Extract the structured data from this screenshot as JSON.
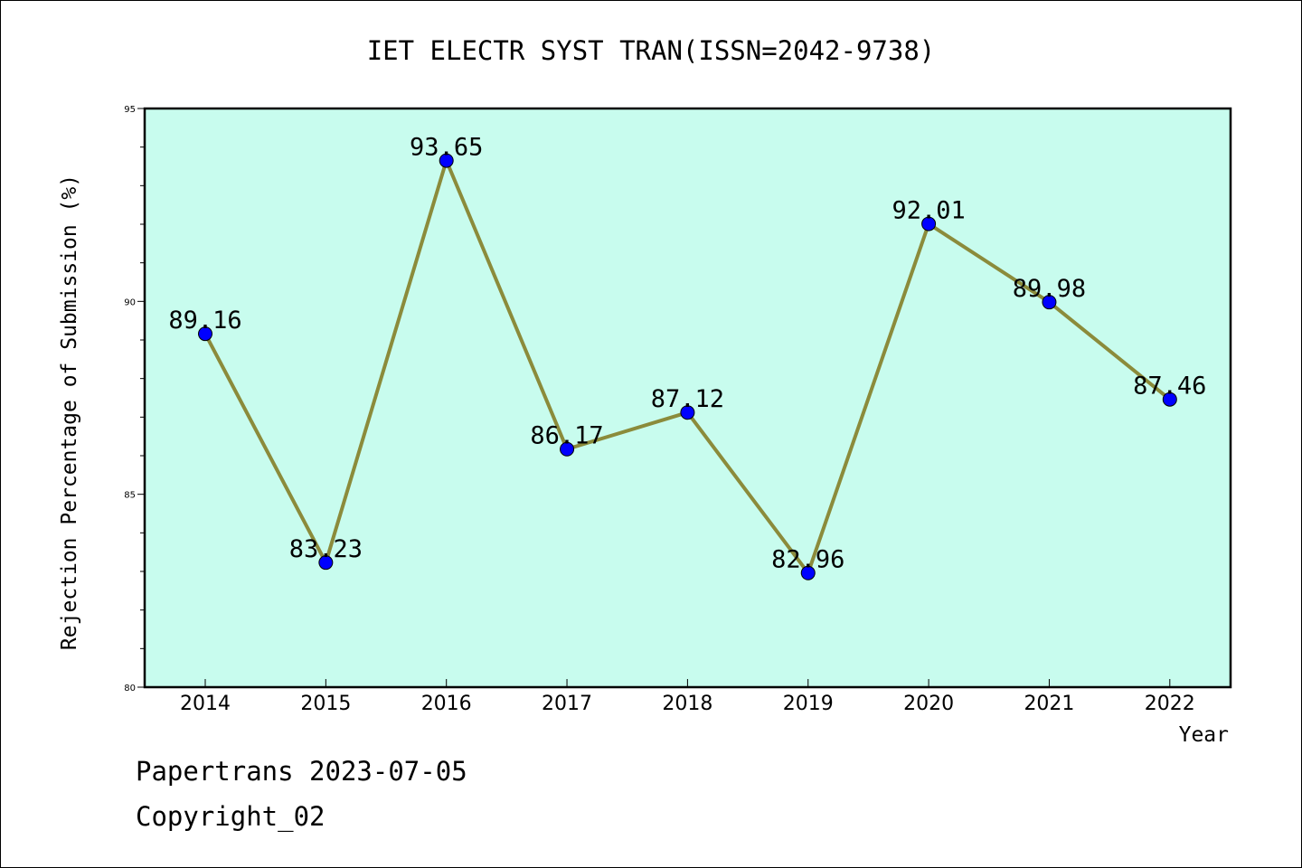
{
  "chart_data": {
    "type": "line",
    "title": "IET ELECTR SYST TRAN(ISSN=2042-9738)",
    "xlabel": "Year",
    "ylabel": "Rejection Percentage of Submission (%)",
    "categories": [
      "2014",
      "2015",
      "2016",
      "2017",
      "2018",
      "2019",
      "2020",
      "2021",
      "2022"
    ],
    "series": [
      {
        "values": [
          89.16,
          83.23,
          93.65,
          86.17,
          87.12,
          82.96,
          92.01,
          89.98,
          87.46
        ],
        "labels": [
          "89.16",
          "83.23",
          "93.65",
          "86.17",
          "87.12",
          "82.96",
          "92.01",
          "89.98",
          "87.46"
        ]
      }
    ],
    "ylim": [
      80,
      95
    ],
    "yticks": [
      "80",
      "85",
      "90",
      "95"
    ],
    "grid": false,
    "colors": {
      "plot_background": "#c8fcee",
      "line": "#8b8b3b",
      "marker": "#0000ff"
    }
  },
  "footer": {
    "line1": "Papertrans 2023-07-05",
    "line2": "Copyright_02"
  }
}
